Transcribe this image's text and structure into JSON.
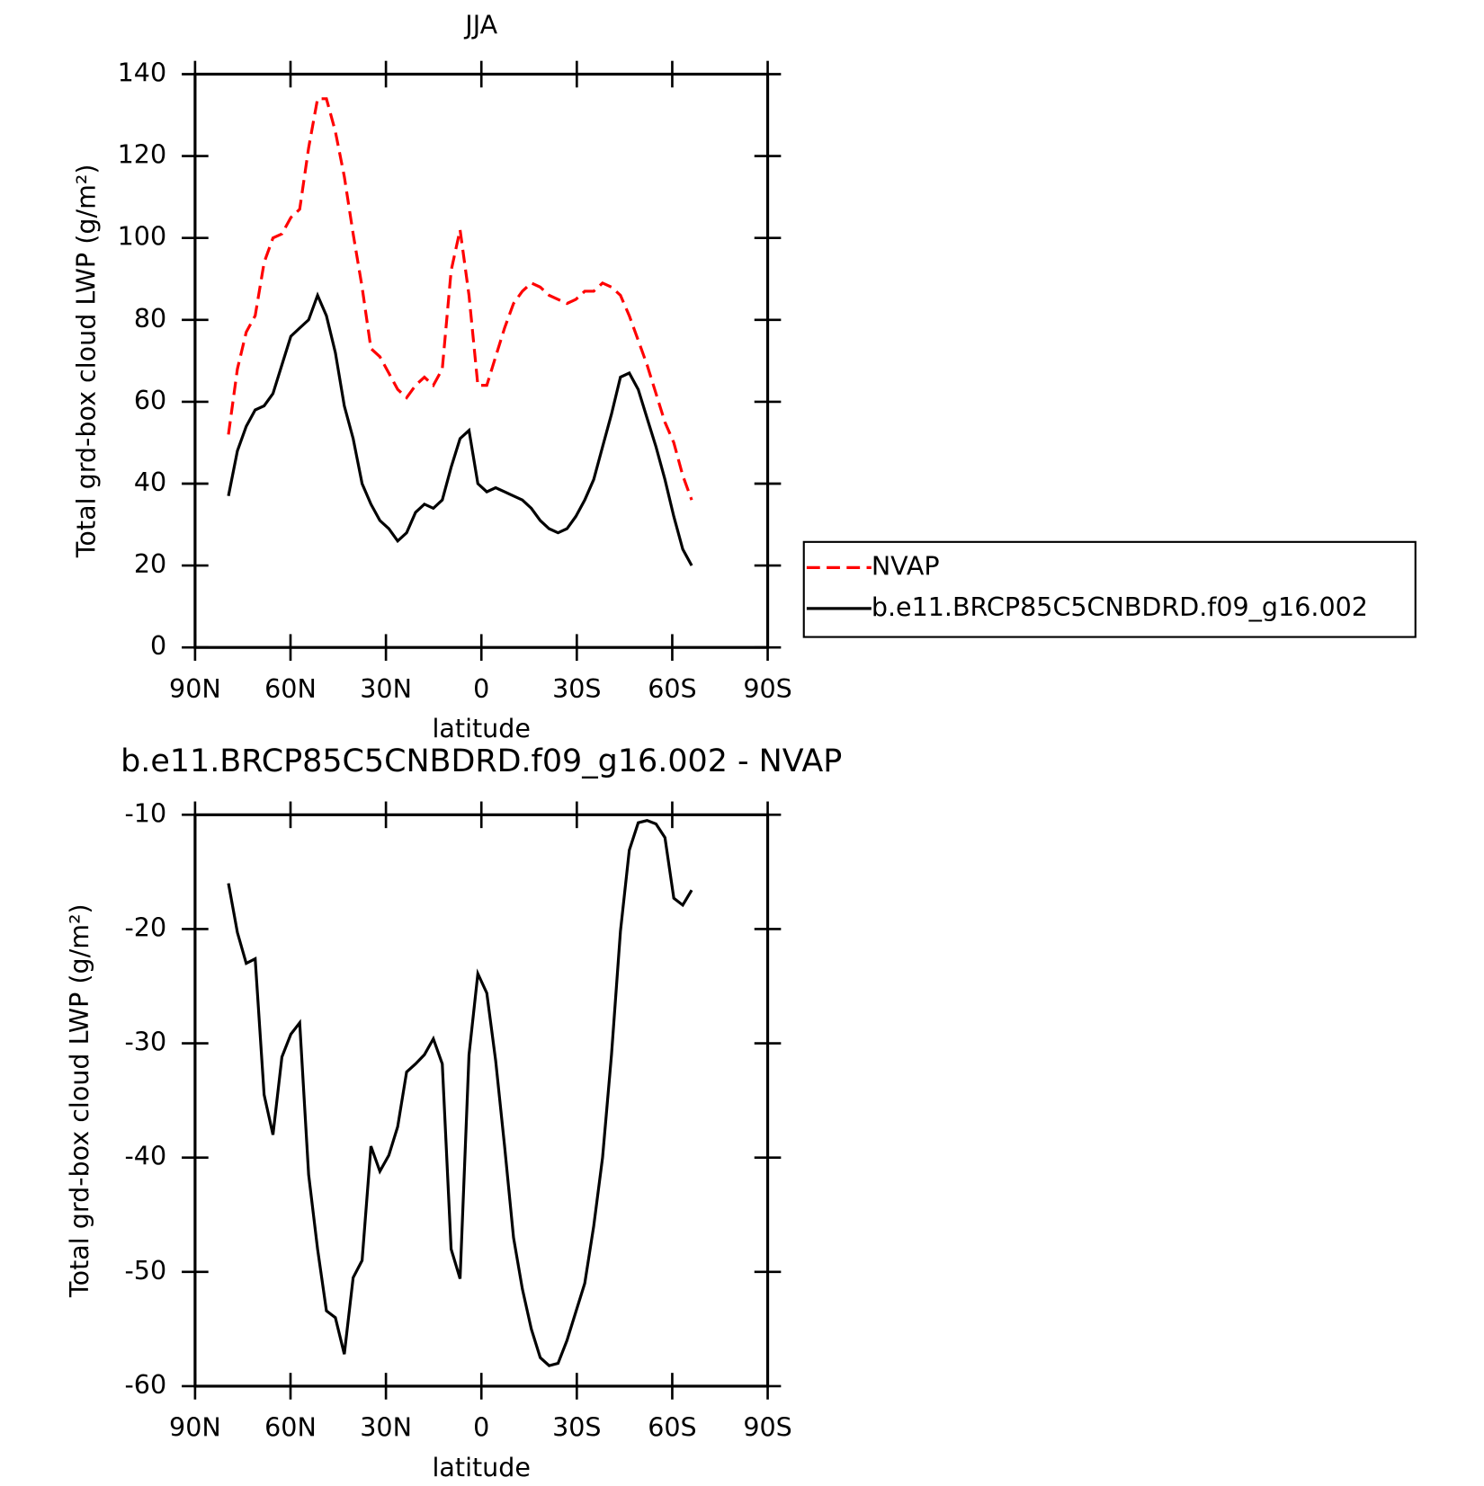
{
  "chart_data": [
    {
      "type": "line",
      "title": "JJA",
      "xlabel": "latitude",
      "ylabel": "Total grd-box cloud LWP (g/m²)",
      "x": [
        79.5,
        76.7,
        73.9,
        71.1,
        68.3,
        65.5,
        62.7,
        59.9,
        57.1,
        54.3,
        51.5,
        48.7,
        45.9,
        43.1,
        40.3,
        37.5,
        34.7,
        31.9,
        29.1,
        26.3,
        23.5,
        20.7,
        17.9,
        15.1,
        12.3,
        9.5,
        6.7,
        3.9,
        1.1,
        -1.7,
        -4.5,
        -7.3,
        -10.1,
        -12.9,
        -15.7,
        -18.5,
        -21.3,
        -24.1,
        -26.9,
        -29.7,
        -32.5,
        -35.3,
        -38.1,
        -40.9,
        -43.7,
        -46.5,
        -49.3,
        -52.1,
        -54.9,
        -57.7,
        -60.5,
        -63.3,
        -66.1
      ],
      "series": [
        {
          "name": "NVAP",
          "color": "#ff0000",
          "linestyle": "dashed",
          "values": [
            52,
            68,
            77,
            81,
            94,
            100,
            101,
            105,
            107,
            122,
            134,
            134,
            126,
            115,
            101,
            88,
            73,
            71,
            67,
            63,
            61,
            64,
            66,
            64,
            68,
            92,
            102,
            86,
            64,
            64,
            71,
            78,
            84,
            87,
            89,
            88,
            86,
            85,
            84,
            85,
            87,
            87,
            89,
            88,
            86,
            81,
            75,
            69,
            62,
            55,
            50,
            42,
            36
          ]
        },
        {
          "name": "b.e11.BRCP85C5CNBDRD.f09_g16.002",
          "color": "#000000",
          "linestyle": "solid",
          "values": [
            37,
            48,
            54,
            58,
            59,
            62,
            69,
            76,
            78,
            80,
            86,
            81,
            72,
            59,
            51,
            40,
            35,
            31,
            29,
            26,
            28,
            33,
            35,
            34,
            36,
            44,
            51,
            53,
            40,
            38,
            39,
            38,
            37,
            36,
            34,
            31,
            29,
            28,
            29,
            32,
            36,
            41,
            49,
            57,
            66,
            67,
            63,
            56,
            49,
            41,
            32,
            24,
            20
          ]
        }
      ],
      "xlim": [
        90,
        -90
      ],
      "xticks": [
        {
          "value": 90,
          "label": "90N"
        },
        {
          "value": 60,
          "label": "60N"
        },
        {
          "value": 30,
          "label": "30N"
        },
        0,
        {
          "value": -30,
          "label": "30S"
        },
        {
          "value": -60,
          "label": "60S"
        },
        {
          "value": -90,
          "label": "90S"
        }
      ],
      "ylim": [
        0,
        140
      ],
      "yticks": [
        0,
        20,
        40,
        60,
        80,
        100,
        120,
        140
      ],
      "legend": "right"
    },
    {
      "type": "line",
      "title": "b.e11.BRCP85C5CNBDRD.f09_g16.002 - NVAP",
      "xlabel": "latitude",
      "ylabel": "Total grd-box cloud LWP (g/m²)",
      "x": [
        79.5,
        76.7,
        73.9,
        71.1,
        68.3,
        65.5,
        62.7,
        59.9,
        57.1,
        54.3,
        51.5,
        48.7,
        45.9,
        43.1,
        40.3,
        37.5,
        34.7,
        31.9,
        29.1,
        26.3,
        23.5,
        20.7,
        17.9,
        15.1,
        12.3,
        9.5,
        6.7,
        3.9,
        1.1,
        -1.7,
        -4.5,
        -7.3,
        -10.1,
        -12.9,
        -15.7,
        -18.5,
        -21.3,
        -24.1,
        -26.9,
        -29.7,
        -32.5,
        -35.3,
        -38.1,
        -40.9,
        -43.7,
        -46.5,
        -49.3,
        -52.1,
        -54.9,
        -57.7,
        -60.5,
        -63.3,
        -66.1
      ],
      "color": "#000000",
      "linestyle": "solid",
      "values": [
        -16,
        -20.3,
        -23,
        -22.6,
        -34.5,
        -38,
        -31.2,
        -29.2,
        -28.2,
        -41.5,
        -48,
        -53.4,
        -54,
        -57.2,
        -50.5,
        -49,
        -39,
        -41.2,
        -39.8,
        -37.3,
        -32.5,
        -31.8,
        -31,
        -29.6,
        -31.8,
        -48,
        -50.6,
        -31,
        -23.9,
        -25.6,
        -31.5,
        -39,
        -47,
        -51.5,
        -55,
        -57.5,
        -58.2,
        -58,
        -56,
        -53.5,
        -51,
        -46,
        -40,
        -31,
        -20.2,
        -13.1,
        -10.7,
        -10.5,
        -10.8,
        -12,
        -17.3,
        -17.9,
        -16.6
      ],
      "xlim": [
        90,
        -90
      ],
      "xticks": [
        {
          "value": 90,
          "label": "90N"
        },
        {
          "value": 60,
          "label": "60N"
        },
        {
          "value": 30,
          "label": "30N"
        },
        0,
        {
          "value": -30,
          "label": "30S"
        },
        {
          "value": -60,
          "label": "60S"
        },
        {
          "value": -90,
          "label": "90S"
        }
      ],
      "ylim": [
        -60,
        -10
      ],
      "yticks": [
        -60,
        -50,
        -40,
        -30,
        -20,
        -10
      ]
    }
  ]
}
